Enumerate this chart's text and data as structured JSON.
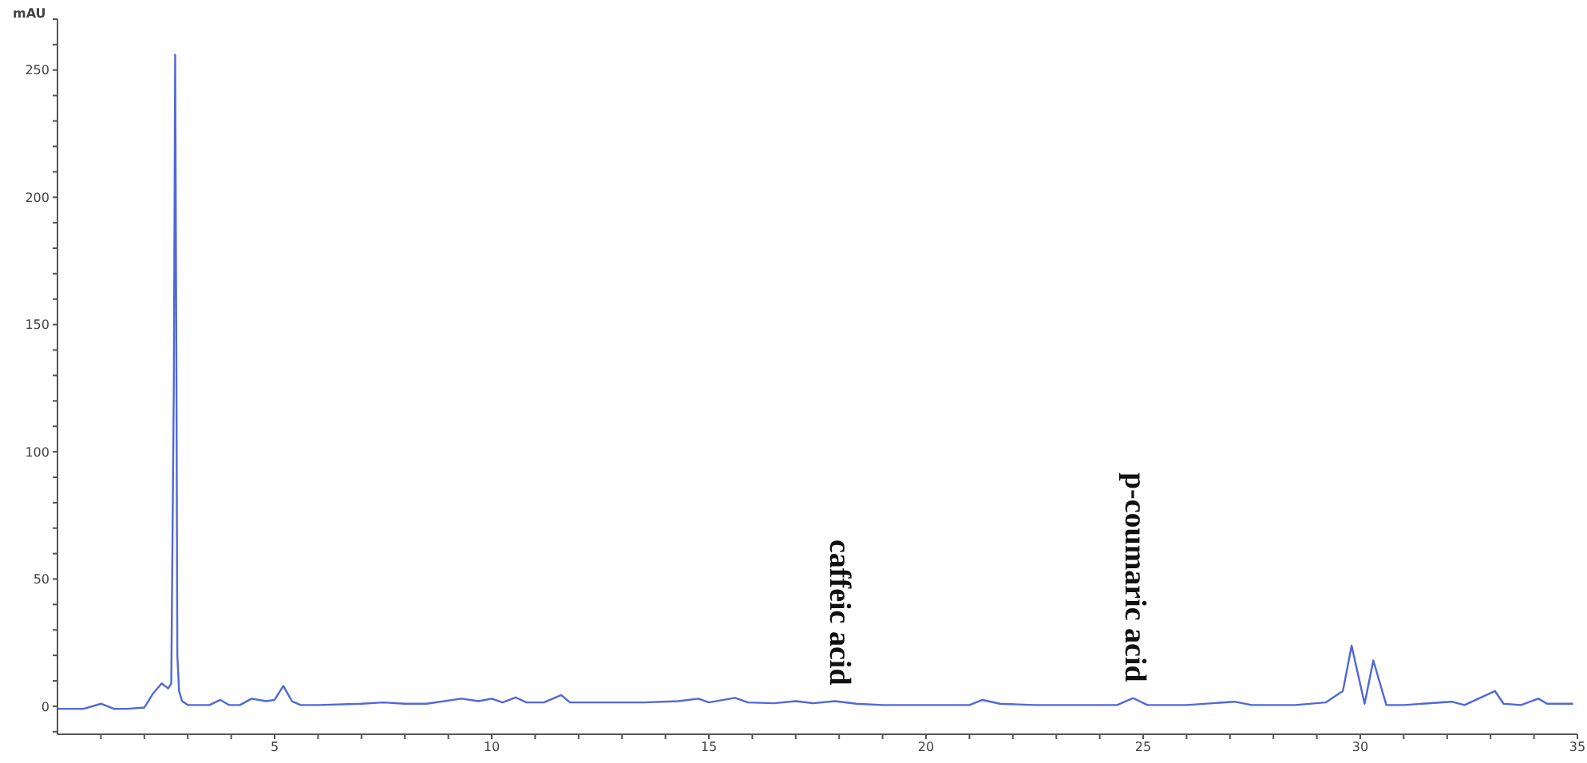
{
  "chart_data": {
    "type": "line",
    "ylabel": "mAU",
    "color": "#5068d8",
    "x": [
      0,
      0.6,
      1.0,
      1.3,
      1.6,
      2.0,
      2.2,
      2.4,
      2.55,
      2.62,
      2.68,
      2.71,
      2.74,
      2.76,
      2.8,
      2.87,
      3.0,
      3.5,
      3.75,
      3.95,
      4.2,
      4.47,
      4.8,
      5.0,
      5.2,
      5.4,
      5.6,
      6.0,
      7.0,
      7.5,
      8.0,
      8.5,
      9.3,
      9.7,
      10.0,
      10.25,
      10.55,
      10.8,
      11.2,
      11.6,
      11.8,
      12.5,
      13.5,
      14.3,
      14.76,
      15.0,
      15.6,
      15.9,
      16.5,
      17.0,
      17.4,
      17.9,
      18.4,
      19.0,
      20.0,
      21.0,
      21.3,
      21.7,
      22.5,
      23.5,
      24.4,
      24.77,
      25.1,
      26.0,
      27.1,
      27.5,
      28.5,
      29.2,
      29.6,
      29.8,
      30.1,
      30.3,
      30.6,
      31.0,
      32.1,
      32.4,
      33.1,
      33.3,
      33.7,
      34.1,
      34.3,
      34.9
    ],
    "values": [
      -1,
      -1,
      1,
      -1,
      -1,
      -0.5,
      5,
      9,
      7,
      9,
      128,
      256,
      128,
      20,
      6,
      2,
      0.5,
      0.5,
      2.5,
      0.5,
      0.5,
      3,
      2,
      2.5,
      8,
      2,
      0.5,
      0.5,
      1,
      1.5,
      1,
      1,
      3,
      2,
      3,
      1.5,
      3.5,
      1.5,
      1.5,
      4.4,
      1.5,
      1.5,
      1.5,
      2,
      3,
      1.5,
      3.3,
      1.5,
      1.2,
      2,
      1.2,
      2,
      1,
      0.5,
      0.5,
      0.5,
      2.5,
      1,
      0.5,
      0.5,
      0.5,
      3.2,
      0.5,
      0.5,
      1.8,
      0.5,
      0.5,
      1.5,
      6,
      23.8,
      1,
      18,
      0.5,
      0.5,
      1.8,
      0.5,
      6,
      1,
      0.5,
      3,
      1,
      1
    ],
    "xlim": [
      0,
      35
    ],
    "xticks": [
      {
        "value": 1,
        "label": null
      },
      {
        "value": 2,
        "label": null
      },
      {
        "value": 3,
        "label": null
      },
      {
        "value": 4,
        "label": null
      },
      5,
      {
        "value": 6,
        "label": null
      },
      {
        "value": 7,
        "label": null
      },
      {
        "value": 8,
        "label": null
      },
      {
        "value": 9,
        "label": null
      },
      10,
      {
        "value": 11,
        "label": null
      },
      {
        "value": 12,
        "label": null
      },
      {
        "value": 13,
        "label": null
      },
      {
        "value": 14,
        "label": null
      },
      15,
      {
        "value": 16,
        "label": null
      },
      {
        "value": 17,
        "label": null
      },
      {
        "value": 18,
        "label": null
      },
      {
        "value": 19,
        "label": null
      },
      20,
      {
        "value": 21,
        "label": null
      },
      {
        "value": 22,
        "label": null
      },
      {
        "value": 23,
        "label": null
      },
      {
        "value": 24,
        "label": null
      },
      25,
      {
        "value": 26,
        "label": null
      },
      {
        "value": 27,
        "label": null
      },
      {
        "value": 28,
        "label": null
      },
      {
        "value": 29,
        "label": null
      },
      30,
      {
        "value": 31,
        "label": null
      },
      {
        "value": 32,
        "label": null
      },
      {
        "value": 33,
        "label": null
      },
      {
        "value": 34,
        "label": null
      },
      35
    ],
    "ylim": [
      -11,
      270
    ],
    "yticks": [
      {
        "value": -10,
        "label": null
      },
      0,
      {
        "value": 10,
        "label": null
      },
      {
        "value": 20,
        "label": null
      },
      {
        "value": 30,
        "label": null
      },
      {
        "value": 40,
        "label": null
      },
      50,
      {
        "value": 60,
        "label": null
      },
      {
        "value": 70,
        "label": null
      },
      {
        "value": 80,
        "label": null
      },
      {
        "value": 90,
        "label": null
      },
      100,
      {
        "value": 110,
        "label": null
      },
      {
        "value": 120,
        "label": null
      },
      {
        "value": 130,
        "label": null
      },
      {
        "value": 140,
        "label": null
      },
      150,
      {
        "value": 160,
        "label": null
      },
      {
        "value": 170,
        "label": null
      },
      {
        "value": 180,
        "label": null
      },
      {
        "value": 190,
        "label": null
      },
      200,
      {
        "value": 210,
        "label": null
      },
      {
        "value": 220,
        "label": null
      },
      {
        "value": 230,
        "label": null
      },
      {
        "value": 240,
        "label": null
      },
      250,
      {
        "value": 260,
        "label": null
      },
      {
        "value": 270,
        "label": null
      }
    ],
    "annotations": [
      {
        "text": "caffeic acid",
        "x": 18,
        "y": 2
      },
      {
        "text": "p-coumaric acid",
        "x": 24.8,
        "y": 3.2
      }
    ]
  }
}
